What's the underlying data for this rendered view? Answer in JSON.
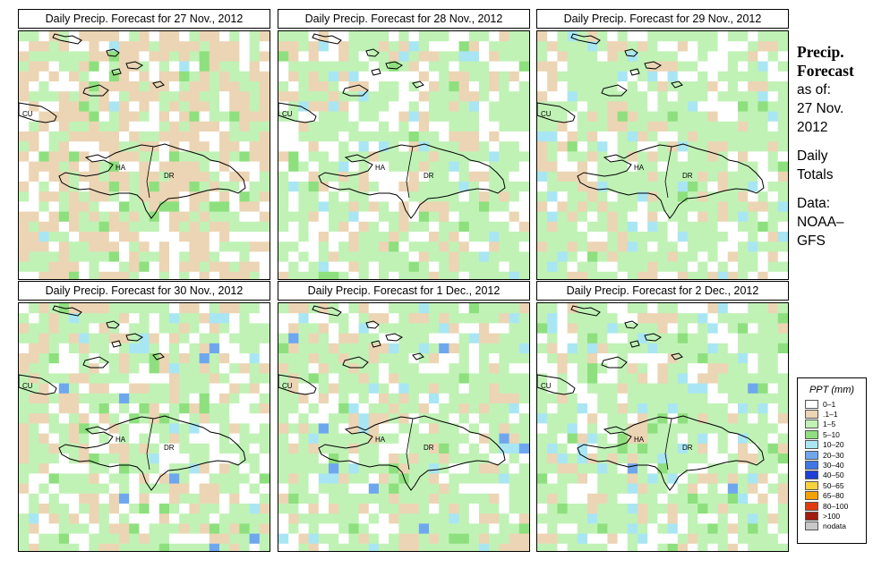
{
  "panels": [
    {
      "title": "Daily Precip. Forecast for  27 Nov., 2012",
      "weights": [
        0.2,
        0.45,
        0.3,
        0.035,
        0.015,
        0,
        0,
        0
      ]
    },
    {
      "title": "Daily Precip. Forecast for  28 Nov., 2012",
      "weights": [
        0.25,
        0.18,
        0.5,
        0.04,
        0.03,
        0,
        0,
        0
      ]
    },
    {
      "title": "Daily Precip. Forecast for  29 Nov., 2012",
      "weights": [
        0.22,
        0.15,
        0.55,
        0.02,
        0.06,
        0,
        0,
        0
      ]
    },
    {
      "title": "Daily Precip. Forecast for  30 Nov., 2012",
      "weights": [
        0.25,
        0.22,
        0.45,
        0.03,
        0.04,
        0.01,
        0,
        0
      ]
    },
    {
      "title": "Daily Precip. Forecast for  1 Dec., 2012",
      "weights": [
        0.18,
        0.18,
        0.55,
        0.03,
        0.05,
        0.01,
        0,
        0
      ]
    },
    {
      "title": "Daily Precip. Forecast for  2 Dec., 2012",
      "weights": [
        0.22,
        0.1,
        0.55,
        0.04,
        0.08,
        0.01,
        0,
        0
      ]
    }
  ],
  "map_labels": {
    "cuba": "CU",
    "haiti": "HA",
    "dr": "DR"
  },
  "sidebar": {
    "title_line1": "Precip.",
    "title_line2": "Forecast",
    "asof_line1": "as of:",
    "asof_line2": "27 Nov.",
    "asof_line3": "2012",
    "totals_line1": "Daily",
    "totals_line2": "Totals",
    "data_line1": "Data:",
    "data_line2": "NOAA–",
    "data_line3": "GFS"
  },
  "legend": {
    "title": "PPT (mm)",
    "items": [
      {
        "label": "0–1",
        "color": "#ffffff"
      },
      {
        "label": ".1–1",
        "color": "#ecd5b4"
      },
      {
        "label": "1–5",
        "color": "#c0f2b6"
      },
      {
        "label": "5–10",
        "color": "#8ee07e"
      },
      {
        "label": "10–20",
        "color": "#a9e6f3"
      },
      {
        "label": "20–30",
        "color": "#6fa7ef"
      },
      {
        "label": "30–40",
        "color": "#3f78e6"
      },
      {
        "label": "40–50",
        "color": "#1d3fd8"
      },
      {
        "label": "50–65",
        "color": "#f5d23c"
      },
      {
        "label": "65–80",
        "color": "#f5a100"
      },
      {
        "label": "80–100",
        "color": "#e23b10"
      },
      {
        "label": ">100",
        "color": "#a11b0f"
      },
      {
        "label": "nodata",
        "color": "#c8c8c8"
      }
    ]
  }
}
